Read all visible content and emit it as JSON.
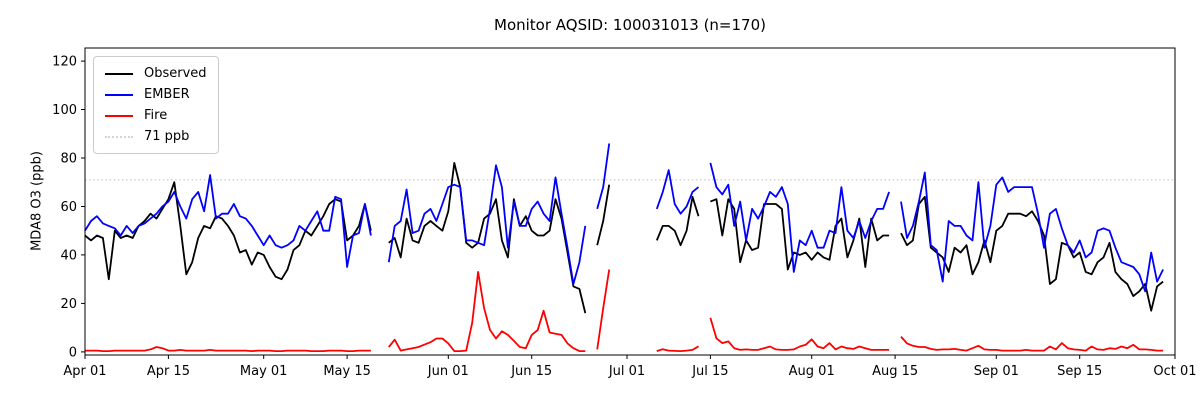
{
  "title": "Monitor AQSID: 100031013 (n=170)",
  "chart_data": {
    "type": "line",
    "title": "Monitor AQSID: 100031013 (n=170)",
    "xlabel": "",
    "ylabel": "MDA8 O3 (ppb)",
    "x_unit": "daily values, day index 0 = Apr 01",
    "xlim": [
      0,
      183
    ],
    "ylim": [
      -1.3,
      125.4
    ],
    "grid": false,
    "legend_position": "upper-left",
    "yticks": [
      0,
      20,
      40,
      60,
      80,
      100,
      120
    ],
    "xticks": [
      {
        "day": 0,
        "label": "Apr 01"
      },
      {
        "day": 14,
        "label": "Apr 15"
      },
      {
        "day": 30,
        "label": "May 01"
      },
      {
        "day": 44,
        "label": "May 15"
      },
      {
        "day": 61,
        "label": "Jun 01"
      },
      {
        "day": 75,
        "label": "Jun 15"
      },
      {
        "day": 91,
        "label": "Jul 01"
      },
      {
        "day": 105,
        "label": "Jul 15"
      },
      {
        "day": 122,
        "label": "Aug 01"
      },
      {
        "day": 136,
        "label": "Aug 15"
      },
      {
        "day": 153,
        "label": "Sep 01"
      },
      {
        "day": 167,
        "label": "Sep 15"
      },
      {
        "day": 183,
        "label": "Oct 01"
      }
    ],
    "threshold": {
      "value": 71,
      "label": "71 ppb",
      "color": "#d3d3d3",
      "style": "dotted"
    },
    "series": [
      {
        "name": "Observed",
        "color": "#000000",
        "values": [
          48,
          46,
          48,
          47,
          30,
          50,
          47,
          48,
          47,
          52,
          54,
          57,
          55,
          59,
          63,
          70,
          52,
          32,
          37,
          47,
          52,
          51,
          56,
          55,
          52,
          48,
          41,
          42,
          36,
          41,
          40,
          35,
          31,
          30,
          34,
          42,
          44,
          50,
          48,
          52,
          56,
          61,
          63,
          62,
          46,
          48,
          52,
          61,
          50,
          null,
          null,
          45,
          47,
          39,
          55,
          46,
          45,
          52,
          54,
          52,
          50,
          58,
          78,
          68,
          45,
          43,
          45,
          55,
          57,
          63,
          46,
          39,
          63,
          52,
          56,
          50,
          48,
          48,
          50,
          63,
          55,
          41,
          27,
          26,
          16,
          null,
          44,
          54,
          69,
          null,
          null,
          null,
          null,
          null,
          null,
          null,
          46,
          52,
          52,
          50,
          44,
          50,
          64,
          56,
          null,
          62,
          63,
          48,
          63,
          59,
          37,
          46,
          42,
          43,
          61,
          61,
          61,
          59,
          34,
          41,
          40,
          41,
          38,
          41,
          39,
          38,
          52,
          55,
          39,
          46,
          55,
          35,
          55,
          46,
          48,
          48,
          null,
          49,
          44,
          46,
          61,
          64,
          43,
          41,
          39,
          33,
          43,
          41,
          44,
          32,
          37,
          46,
          37,
          50,
          52,
          57,
          57,
          57,
          56,
          58,
          54,
          48,
          28,
          30,
          45,
          44,
          39,
          41,
          33,
          32,
          37,
          39,
          45,
          33,
          30,
          28,
          23,
          25,
          28,
          17,
          27,
          29
        ]
      },
      {
        "name": "EMBER",
        "color": "#0000ff",
        "values": [
          50,
          54,
          56,
          53,
          52,
          51,
          48,
          52,
          49,
          52,
          53,
          55,
          57,
          60,
          62,
          66,
          60,
          55,
          63,
          66,
          58,
          73,
          55,
          57,
          57,
          61,
          56,
          55,
          52,
          48,
          44,
          48,
          44,
          43,
          44,
          46,
          52,
          50,
          54,
          58,
          50,
          50,
          64,
          63,
          35,
          48,
          49,
          61,
          48,
          null,
          null,
          37,
          52,
          54,
          67,
          49,
          50,
          57,
          59,
          54,
          61,
          68,
          69,
          68,
          46,
          46,
          45,
          44,
          59,
          77,
          68,
          43,
          62,
          52,
          52,
          59,
          62,
          57,
          54,
          72,
          57,
          43,
          28,
          37,
          52,
          null,
          59,
          68,
          86,
          null,
          null,
          null,
          null,
          null,
          null,
          null,
          59,
          66,
          75,
          61,
          57,
          60,
          66,
          68,
          null,
          78,
          68,
          65,
          69,
          52,
          62,
          46,
          59,
          55,
          60,
          66,
          64,
          68,
          61,
          33,
          46,
          44,
          50,
          43,
          43,
          50,
          49,
          68,
          50,
          47,
          54,
          47,
          54,
          59,
          59,
          66,
          null,
          62,
          47,
          52,
          62,
          74,
          44,
          42,
          29,
          54,
          52,
          52,
          48,
          46,
          70,
          43,
          52,
          69,
          72,
          66,
          68,
          68,
          68,
          68,
          57,
          43,
          57,
          59,
          51,
          44,
          41,
          46,
          39,
          41,
          50,
          51,
          50,
          43,
          37,
          36,
          35,
          32,
          25,
          41,
          29,
          34
        ]
      },
      {
        "name": "Fire",
        "color": "#ff0000",
        "values": [
          0.5,
          0.5,
          0.5,
          0.3,
          0.3,
          0.5,
          0.5,
          0.5,
          0.5,
          0.5,
          0.5,
          1,
          2,
          1.5,
          0.5,
          0.5,
          0.8,
          0.5,
          0.5,
          0.5,
          0.5,
          0.8,
          0.5,
          0.5,
          0.5,
          0.5,
          0.5,
          0.5,
          0.3,
          0.5,
          0.5,
          0.5,
          0.3,
          0.3,
          0.5,
          0.5,
          0.5,
          0.5,
          0.3,
          0.3,
          0.3,
          0.5,
          0.5,
          0.5,
          0.3,
          0.3,
          0.5,
          0.5,
          0.5,
          null,
          null,
          2,
          5,
          0.5,
          1,
          1.5,
          2,
          3,
          4,
          5.5,
          5.5,
          3.5,
          0.3,
          0.3,
          0.5,
          12,
          33,
          18,
          9,
          5.5,
          8.5,
          7,
          4.5,
          2,
          1.5,
          7,
          9,
          17,
          8,
          7.5,
          7,
          3.5,
          1.5,
          0.3,
          0.3,
          null,
          1,
          18,
          34,
          null,
          null,
          null,
          null,
          null,
          null,
          null,
          0.3,
          1.1,
          0.5,
          0.4,
          0.3,
          0.5,
          0.8,
          2.3,
          null,
          14,
          5.6,
          3.6,
          4.3,
          1.5,
          0.8,
          1,
          0.8,
          0.8,
          1.5,
          2.2,
          1,
          0.8,
          0.8,
          1,
          2.2,
          2.9,
          5.2,
          2.2,
          1.5,
          3.6,
          1,
          2.2,
          1.5,
          1.2,
          2.2,
          1.5,
          0.8,
          0.8,
          0.8,
          0.8,
          null,
          6.3,
          3.5,
          2.5,
          2,
          2,
          1.2,
          0.8,
          1,
          1,
          1.2,
          0.8,
          0.5,
          1.5,
          2.5,
          1,
          0.8,
          0.8,
          0.5,
          0.5,
          0.5,
          0.5,
          0.8,
          0.5,
          0.5,
          0.5,
          2.2,
          1,
          3.6,
          1.5,
          1,
          0.8,
          0.5,
          2.2,
          1,
          0.8,
          1.5,
          1.2,
          2.2,
          1.5,
          2.9,
          1,
          1,
          0.8,
          0.5,
          0.5
        ]
      }
    ]
  }
}
